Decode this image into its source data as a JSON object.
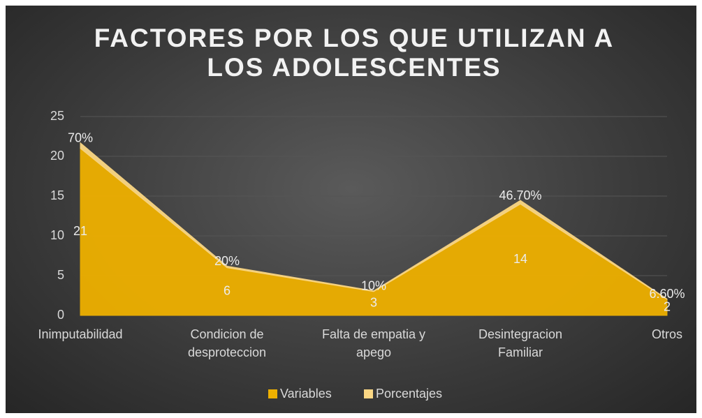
{
  "chart_data": {
    "type": "stacked_area",
    "title": "FACTORES POR LOS QUE UTILIZAN A LOS ADOLESCENTES",
    "categories": [
      "Inimputabilidad",
      "Condicion de desproteccion",
      "Falta de empatia y apego",
      "Desintegracion Familiar",
      "Otros"
    ],
    "series": [
      {
        "name": "Variables",
        "color": "#eeb000",
        "values": [
          21,
          6,
          3,
          14,
          2
        ]
      },
      {
        "name": "Porcentajes",
        "color": "#fbd784",
        "values": [
          0.7,
          0.2,
          0.1,
          0.467,
          0.066
        ],
        "value_labels": [
          "70%",
          "20%",
          "10%",
          "46.70%",
          "6.60%"
        ]
      }
    ],
    "ylim": [
      0,
      25
    ],
    "yticks": [
      0,
      5,
      10,
      15,
      20,
      25
    ],
    "grid": true,
    "legend": "bottom"
  }
}
